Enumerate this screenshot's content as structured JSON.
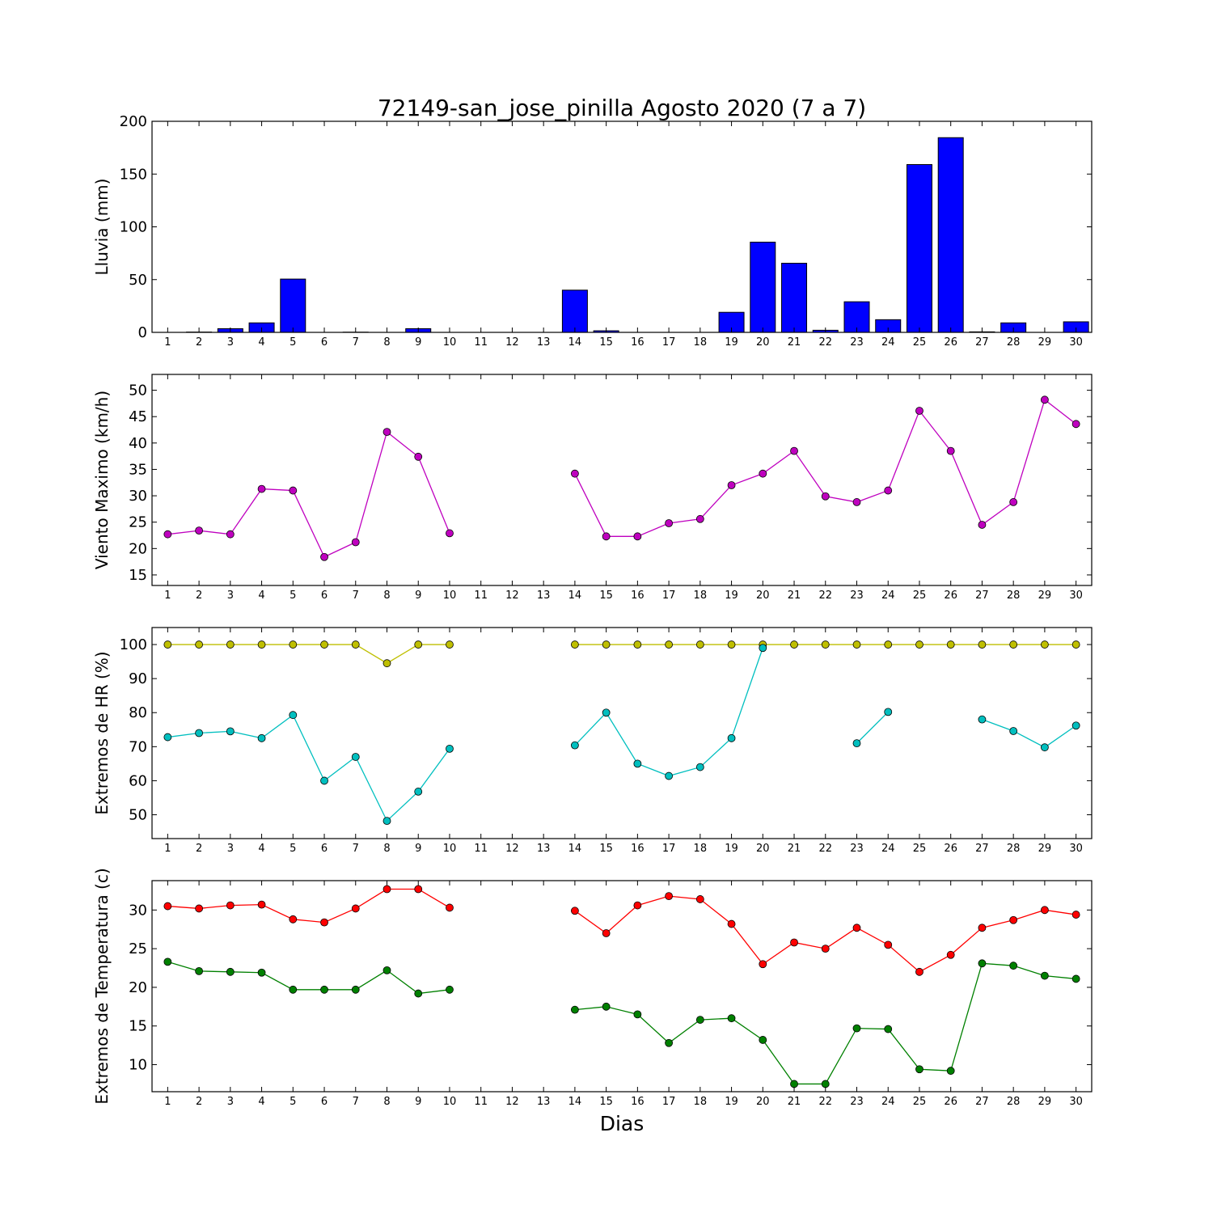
{
  "title": "72149-san_jose_pinilla Agosto 2020  (7 a 7)",
  "xlabel": "Dias",
  "chart_data": [
    {
      "type": "bar",
      "ylabel": "Lluvia (mm)",
      "ylim": [
        0,
        200
      ],
      "yticks": [
        0,
        50,
        100,
        150,
        200
      ],
      "categories": [
        1,
        2,
        3,
        4,
        5,
        6,
        7,
        8,
        9,
        10,
        11,
        12,
        13,
        14,
        15,
        16,
        17,
        18,
        19,
        20,
        21,
        22,
        23,
        24,
        25,
        26,
        27,
        28,
        29,
        30
      ],
      "series": [
        {
          "color": "#0000ff",
          "values": [
            0,
            0.3,
            3.5,
            9,
            50.5,
            0,
            0.2,
            0,
            3.5,
            null,
            null,
            null,
            null,
            40,
            1.5,
            0,
            0,
            0,
            19,
            85.5,
            65.5,
            2,
            29,
            12,
            159,
            184.5,
            0.5,
            9,
            0,
            10
          ]
        }
      ]
    },
    {
      "type": "line",
      "ylabel": "Viento Maximo (km/h)",
      "ylim": [
        13,
        53
      ],
      "yticks": [
        15,
        20,
        25,
        30,
        35,
        40,
        45,
        50
      ],
      "x": [
        1,
        2,
        3,
        4,
        5,
        6,
        7,
        8,
        9,
        10,
        11,
        12,
        13,
        14,
        15,
        16,
        17,
        18,
        19,
        20,
        21,
        22,
        23,
        24,
        25,
        26,
        27,
        28,
        29,
        30
      ],
      "series": [
        {
          "color": "#bf00bf",
          "values": [
            22.7,
            23.4,
            22.7,
            31.3,
            31,
            18.4,
            21.2,
            42.1,
            37.4,
            22.9,
            null,
            null,
            null,
            34.2,
            22.3,
            22.3,
            24.8,
            25.6,
            32,
            34.2,
            38.5,
            29.9,
            28.8,
            31,
            46.1,
            38.5,
            24.5,
            28.8,
            48.2,
            43.6
          ]
        }
      ]
    },
    {
      "type": "line",
      "ylabel": "Extremos de HR (%)",
      "ylim": [
        43,
        105
      ],
      "yticks": [
        50,
        60,
        70,
        80,
        90,
        100
      ],
      "x": [
        1,
        2,
        3,
        4,
        5,
        6,
        7,
        8,
        9,
        10,
        11,
        12,
        13,
        14,
        15,
        16,
        17,
        18,
        19,
        20,
        21,
        22,
        23,
        24,
        25,
        26,
        27,
        28,
        29,
        30
      ],
      "series": [
        {
          "color": "#bfbf00",
          "values": [
            100,
            100,
            100,
            100,
            100,
            100,
            100,
            94.5,
            100,
            100,
            null,
            null,
            null,
            100,
            100,
            100,
            100,
            100,
            100,
            100,
            100,
            100,
            100,
            100,
            100,
            100,
            100,
            100,
            100,
            100
          ]
        },
        {
          "color": "#00bfbf",
          "values": [
            72.8,
            74,
            74.5,
            72.5,
            79.3,
            60,
            67,
            48.2,
            56.8,
            69.4,
            null,
            null,
            null,
            70.4,
            80,
            65,
            61.4,
            64,
            72.5,
            99,
            null,
            null,
            71,
            80.2,
            null,
            null,
            78,
            74.6,
            69.8,
            76.2
          ]
        }
      ]
    },
    {
      "type": "line",
      "ylabel": "Extremos de Temperatura (c)",
      "ylim": [
        6.5,
        33.8
      ],
      "yticks": [
        10,
        15,
        20,
        25,
        30
      ],
      "x": [
        1,
        2,
        3,
        4,
        5,
        6,
        7,
        8,
        9,
        10,
        11,
        12,
        13,
        14,
        15,
        16,
        17,
        18,
        19,
        20,
        21,
        22,
        23,
        24,
        25,
        26,
        27,
        28,
        29,
        30
      ],
      "series": [
        {
          "color": "#ff0000",
          "values": [
            30.5,
            30.2,
            30.6,
            30.7,
            28.8,
            28.4,
            30.2,
            32.7,
            32.7,
            30.3,
            null,
            null,
            null,
            29.9,
            27,
            30.6,
            31.8,
            31.4,
            28.2,
            23,
            25.8,
            25,
            27.7,
            25.5,
            22,
            24.2,
            27.7,
            28.7,
            30,
            29.4
          ]
        },
        {
          "color": "#008000",
          "values": [
            23.3,
            22.1,
            22,
            21.9,
            19.7,
            19.7,
            19.7,
            22.2,
            19.2,
            19.7,
            null,
            null,
            null,
            17.1,
            17.5,
            16.5,
            12.8,
            15.8,
            16,
            13.2,
            7.5,
            7.5,
            14.7,
            14.6,
            9.4,
            9.2,
            23.1,
            22.8,
            21.5,
            21.1
          ]
        }
      ]
    }
  ]
}
